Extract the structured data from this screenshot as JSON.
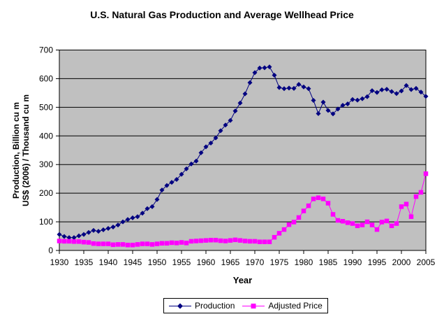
{
  "chart_data": {
    "type": "line",
    "title": "U.S. Natural Gas Production and Average Wellhead Price",
    "xlabel": "Year",
    "ylabel_line1": "Production, Billion cu m",
    "ylabel_line2": "US$ (2006) / Thousand cu m",
    "xlim": [
      1930,
      2005
    ],
    "ylim": [
      0,
      700
    ],
    "x_ticks": [
      1930,
      1935,
      1940,
      1945,
      1950,
      1955,
      1960,
      1965,
      1970,
      1975,
      1980,
      1985,
      1990,
      1995,
      2000,
      2005
    ],
    "y_ticks": [
      0,
      100,
      200,
      300,
      400,
      500,
      600,
      700
    ],
    "grid": true,
    "legend_position": "bottom",
    "plot_bg_color": "#c0c0c0",
    "gridline_color": "#000000",
    "axis_color": "#000000",
    "x": [
      1930,
      1931,
      1932,
      1933,
      1934,
      1935,
      1936,
      1937,
      1938,
      1939,
      1940,
      1941,
      1942,
      1943,
      1944,
      1945,
      1946,
      1947,
      1948,
      1949,
      1950,
      1951,
      1952,
      1953,
      1954,
      1955,
      1956,
      1957,
      1958,
      1959,
      1960,
      1961,
      1962,
      1963,
      1964,
      1965,
      1966,
      1967,
      1968,
      1969,
      1970,
      1971,
      1972,
      1973,
      1974,
      1975,
      1976,
      1977,
      1978,
      1979,
      1980,
      1981,
      1982,
      1983,
      1984,
      1985,
      1986,
      1987,
      1988,
      1989,
      1990,
      1991,
      1992,
      1993,
      1994,
      1995,
      1996,
      1997,
      1998,
      1999,
      2000,
      2001,
      2002,
      2003,
      2004,
      2005
    ],
    "series": [
      {
        "name": "Production",
        "color": "#000080",
        "marker": "diamond",
        "values": [
          56,
          49,
          45,
          45,
          51,
          56,
          63,
          70,
          67,
          72,
          77,
          82,
          89,
          100,
          108,
          114,
          118,
          130,
          146,
          153,
          178,
          211,
          227,
          238,
          248,
          266,
          285,
          302,
          312,
          341,
          362,
          375,
          393,
          418,
          438,
          454,
          487,
          515,
          547,
          586,
          621,
          637,
          638,
          641,
          612,
          569,
          565,
          567,
          566,
          580,
          571,
          565,
          524,
          478,
          518,
          489,
          477,
          494,
          507,
          512,
          527,
          525,
          530,
          537,
          558,
          552,
          561,
          563,
          555,
          548,
          557,
          576,
          562,
          566,
          553,
          538
        ]
      },
      {
        "name": "Adjusted Price",
        "color": "#ff00ff",
        "marker": "square",
        "values": [
          33,
          32,
          32,
          31,
          31,
          29,
          28,
          24,
          23,
          23,
          23,
          20,
          21,
          21,
          19,
          19,
          21,
          23,
          23,
          21,
          23,
          25,
          25,
          27,
          26,
          28,
          26,
          32,
          33,
          34,
          35,
          36,
          36,
          34,
          33,
          35,
          37,
          35,
          33,
          32,
          32,
          30,
          30,
          30,
          46,
          60,
          73,
          90,
          99,
          115,
          138,
          156,
          180,
          184,
          180,
          165,
          126,
          105,
          102,
          97,
          94,
          86,
          89,
          100,
          89,
          73,
          99,
          103,
          86,
          94,
          153,
          162,
          118,
          188,
          203,
          268
        ]
      }
    ]
  }
}
